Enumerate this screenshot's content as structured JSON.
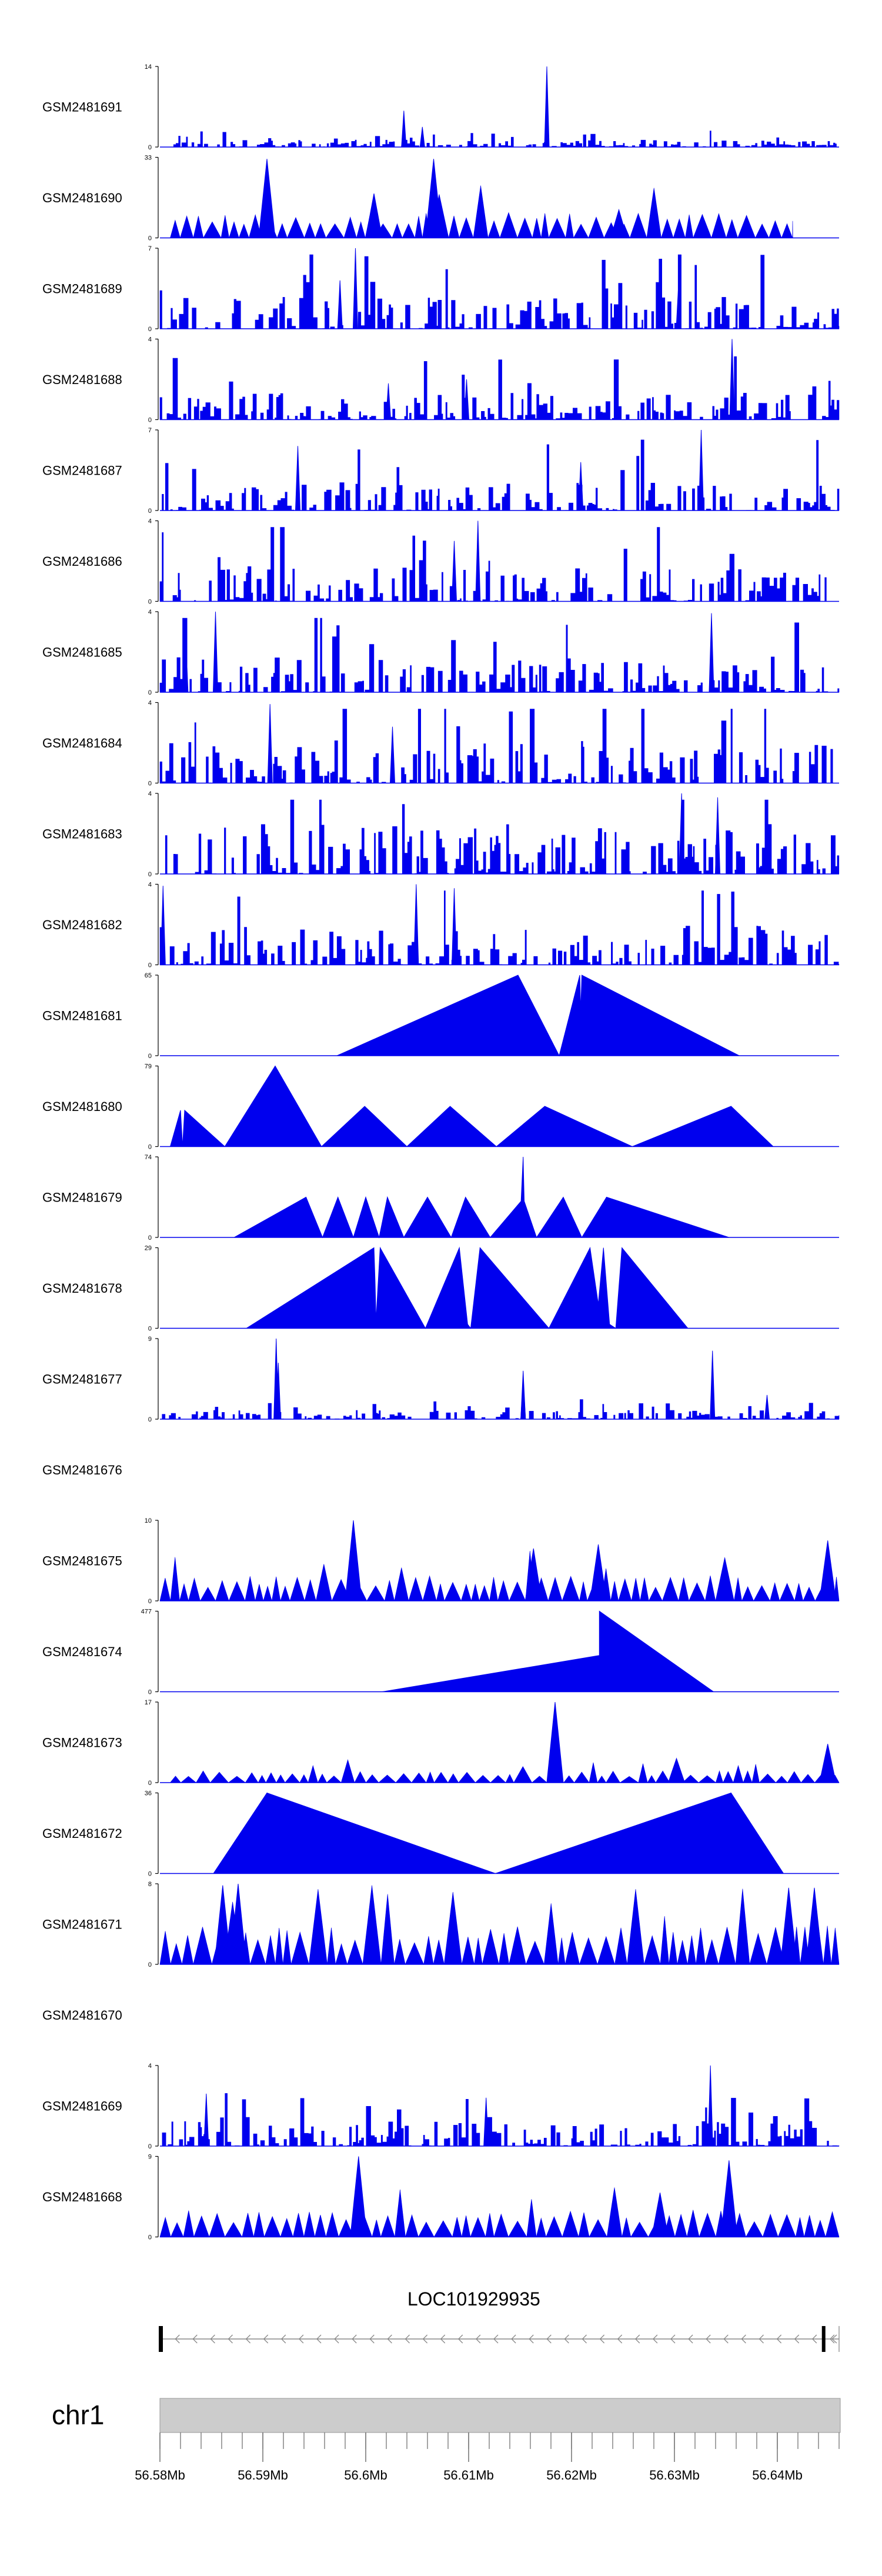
{
  "chart_data": {
    "type": "area",
    "title": "",
    "fill_color": "#0000ee",
    "xlim": [
      56.58,
      56.646
    ],
    "tracks": [
      {
        "name": "GSM2481691",
        "ymax": "14",
        "profile": "noisy",
        "seed": 11,
        "base": 0.04,
        "peaks": [
          [
            56.6037,
            0.45
          ],
          [
            56.6176,
            1.0
          ],
          [
            56.6055,
            0.25
          ]
        ],
        "min_x": 56.58,
        "max_x": 56.646
      },
      {
        "name": "GSM2481690",
        "ymax": "33",
        "profile": "spiky",
        "seed": 23,
        "base": 0.3,
        "peaks": [
          [
            56.5904,
            0.98
          ],
          [
            56.6008,
            0.55
          ],
          [
            56.6066,
            0.98
          ],
          [
            56.6246,
            0.35
          ]
        ],
        "min_x": 56.581,
        "max_x": 56.6415
      },
      {
        "name": "GSM2481689",
        "ymax": "7",
        "profile": "noisy",
        "seed": 37,
        "base": 0.18,
        "peaks": [
          [
            56.599,
            1.0
          ],
          [
            56.5975,
            0.6
          ],
          [
            56.6304,
            0.55
          ]
        ],
        "min_x": 56.58,
        "max_x": 56.646
      },
      {
        "name": "GSM2481688",
        "ymax": "4",
        "profile": "noisy",
        "seed": 41,
        "base": 0.15,
        "peaks": [
          [
            56.6356,
            1.0
          ],
          [
            56.6098,
            0.5
          ],
          [
            56.6022,
            0.45
          ]
        ],
        "min_x": 56.58,
        "max_x": 56.646
      },
      {
        "name": "GSM2481687",
        "ymax": "7",
        "profile": "noisy",
        "seed": 53,
        "base": 0.16,
        "peaks": [
          [
            56.5934,
            0.8
          ],
          [
            56.6326,
            1.0
          ],
          [
            56.6209,
            0.6
          ]
        ],
        "min_x": 56.58,
        "max_x": 56.646
      },
      {
        "name": "GSM2481686",
        "ymax": "4",
        "profile": "noisy",
        "seed": 67,
        "base": 0.2,
        "peaks": [
          [
            56.6109,
            1.0
          ],
          [
            56.6086,
            0.75
          ]
        ],
        "min_x": 56.58,
        "max_x": 56.645
      },
      {
        "name": "GSM2481685",
        "ymax": "4",
        "profile": "noisy",
        "seed": 71,
        "base": 0.2,
        "peaks": [
          [
            56.5854,
            1.0
          ],
          [
            56.6336,
            0.98
          ],
          [
            56.5825,
            0.7
          ]
        ],
        "min_x": 56.58,
        "max_x": 56.646
      },
      {
        "name": "GSM2481684",
        "ymax": "4",
        "profile": "noisy",
        "seed": 83,
        "base": 0.24,
        "peaks": [
          [
            56.5907,
            0.98
          ],
          [
            56.6026,
            0.7
          ]
        ],
        "min_x": 56.58,
        "max_x": 56.646
      },
      {
        "name": "GSM2481683",
        "ymax": "4",
        "profile": "noisy",
        "seed": 97,
        "base": 0.28,
        "peaks": [
          [
            56.6307,
            1.0
          ],
          [
            56.6342,
            0.95
          ]
        ],
        "min_x": 56.58,
        "max_x": 56.646
      },
      {
        "name": "GSM2481682",
        "ymax": "4",
        "profile": "noisy",
        "seed": 101,
        "base": 0.22,
        "peaks": [
          [
            56.5803,
            0.98
          ],
          [
            56.6049,
            1.0
          ],
          [
            56.6086,
            0.95
          ]
        ],
        "min_x": 56.58,
        "max_x": 56.646
      },
      {
        "name": "GSM2481681",
        "ymax": "65",
        "profile": "tri",
        "points": [
          [
            56.5972,
            0
          ],
          [
            56.6148,
            1.0
          ],
          [
            56.6188,
            0
          ],
          [
            56.6208,
            1.0
          ],
          [
            56.6209,
            0.55
          ],
          [
            56.621,
            1.0
          ],
          [
            56.6363,
            0
          ]
        ]
      },
      {
        "name": "GSM2481680",
        "ymax": "79",
        "profile": "tri",
        "points": [
          [
            56.581,
            0
          ],
          [
            56.582,
            0.45
          ],
          [
            56.5822,
            0
          ],
          [
            56.5824,
            0.45
          ],
          [
            56.5863,
            0
          ],
          [
            56.5912,
            1.0
          ],
          [
            56.5957,
            0
          ],
          [
            56.5999,
            0.5
          ],
          [
            56.604,
            0
          ],
          [
            56.6082,
            0.5
          ],
          [
            56.6127,
            0
          ],
          [
            56.6174,
            0.5
          ],
          [
            56.6259,
            0
          ],
          [
            56.6355,
            0.5
          ],
          [
            56.6396,
            0
          ]
        ]
      },
      {
        "name": "GSM2481679",
        "ymax": "74",
        "profile": "tri",
        "points": [
          [
            56.5872,
            0
          ],
          [
            56.5942,
            0.5
          ],
          [
            56.5958,
            0
          ],
          [
            56.5973,
            0.5
          ],
          [
            56.5988,
            0
          ],
          [
            56.6,
            0.5
          ],
          [
            56.6013,
            0
          ],
          [
            56.6021,
            0.5
          ],
          [
            56.6037,
            0
          ],
          [
            56.606,
            0.5
          ],
          [
            56.6083,
            0
          ],
          [
            56.6097,
            0.5
          ],
          [
            56.6121,
            0
          ],
          [
            56.6151,
            0.45
          ],
          [
            56.6151,
            0.45
          ],
          [
            56.6153,
            1.0
          ],
          [
            56.6154,
            0.45
          ],
          [
            56.6166,
            0
          ],
          [
            56.6192,
            0.5
          ],
          [
            56.621,
            0
          ],
          [
            56.6234,
            0.5
          ],
          [
            56.6353,
            0
          ]
        ]
      },
      {
        "name": "GSM2481678",
        "ymax": "29",
        "profile": "tri",
        "points": [
          [
            56.5884,
            0
          ],
          [
            56.6008,
            1.0
          ],
          [
            56.6009,
            0.6
          ],
          [
            56.601,
            0.1
          ],
          [
            56.6014,
            1.0
          ],
          [
            56.6058,
            0
          ],
          [
            56.6091,
            1.0
          ],
          [
            56.6099,
            0.05
          ],
          [
            56.6102,
            0
          ],
          [
            56.6111,
            1.0
          ],
          [
            56.6178,
            0
          ],
          [
            56.6218,
            1.0
          ],
          [
            56.6226,
            0.3
          ],
          [
            56.6231,
            1.0
          ],
          [
            56.6237,
            0.05
          ],
          [
            56.6243,
            0
          ],
          [
            56.6249,
            1.0
          ],
          [
            56.6313,
            0
          ]
        ]
      },
      {
        "name": "GSM2481677",
        "ymax": "9",
        "profile": "noisy",
        "seed": 131,
        "base": 0.05,
        "peaks": [
          [
            56.5913,
            1.0
          ],
          [
            56.5915,
            0.7
          ],
          [
            56.6153,
            0.6
          ],
          [
            56.6153,
            0.5
          ],
          [
            56.6337,
            0.85
          ],
          [
            56.639,
            0.3
          ]
        ],
        "min_x": 56.58,
        "max_x": 56.646
      },
      {
        "name": "GSM2481676",
        "ymax": "",
        "profile": "empty"
      },
      {
        "name": "GSM2481675",
        "ymax": "10",
        "profile": "spiky",
        "seed": 149,
        "base": 0.3,
        "peaks": [
          [
            56.5988,
            1.0
          ],
          [
            56.6163,
            0.65
          ],
          [
            56.6226,
            0.7
          ],
          [
            56.6449,
            0.75
          ]
        ],
        "min_x": 56.58,
        "max_x": 56.646
      },
      {
        "name": "GSM2481674",
        "ymax": "477",
        "profile": "tri",
        "points": [
          [
            56.6016,
            0
          ],
          [
            56.6227,
            0.45
          ],
          [
            56.6227,
            1.0
          ],
          [
            56.6338,
            0
          ]
        ]
      },
      {
        "name": "GSM2481673",
        "ymax": "17",
        "profile": "spiky",
        "seed": 163,
        "base": 0.14,
        "peaks": [
          [
            56.6184,
            1.0
          ],
          [
            56.6184,
            0.6
          ],
          [
            56.6302,
            0.3
          ],
          [
            56.6449,
            0.48
          ]
        ],
        "min_x": 56.581,
        "max_x": 56.646
      },
      {
        "name": "GSM2481672",
        "ymax": "36",
        "profile": "tri",
        "points": [
          [
            56.5852,
            0
          ],
          [
            56.5904,
            1.0
          ],
          [
            56.6126,
            0
          ],
          [
            56.6355,
            1.0
          ],
          [
            56.6406,
            0
          ]
        ]
      },
      {
        "name": "GSM2481671",
        "ymax": "8",
        "profile": "spiky",
        "seed": 181,
        "base": 0.46,
        "peaks": [
          [
            56.5861,
            0.98
          ],
          [
            56.5876,
            1.0
          ],
          [
            56.6411,
            0.95
          ],
          [
            56.6436,
            0.95
          ]
        ],
        "min_x": 56.58,
        "max_x": 56.646
      },
      {
        "name": "GSM2481670",
        "ymax": "",
        "profile": "empty"
      },
      {
        "name": "GSM2481669",
        "ymax": "4",
        "profile": "noisy",
        "seed": 197,
        "base": 0.14,
        "peaks": [
          [
            56.6335,
            1.0
          ],
          [
            56.5845,
            0.65
          ],
          [
            56.6117,
            0.6
          ]
        ],
        "min_x": 56.58,
        "max_x": 56.646
      },
      {
        "name": "GSM2481668",
        "ymax": "9",
        "profile": "spiky",
        "seed": 211,
        "base": 0.32,
        "peaks": [
          [
            56.5993,
            1.0
          ],
          [
            56.6353,
            0.95
          ],
          [
            56.6286,
            0.55
          ]
        ],
        "min_x": 56.58,
        "max_x": 56.646
      }
    ],
    "gene": {
      "label": "LOC101929935",
      "start": 56.58,
      "end": 56.646,
      "strand": "-",
      "arrow_glyph": "<"
    },
    "ideogram": {
      "label": "chr1",
      "ticks": [
        "56.58Mb",
        "56.59Mb",
        "56.6Mb",
        "56.61Mb",
        "56.62Mb",
        "56.63Mb",
        "56.64Mb"
      ],
      "tick_values": [
        56.58,
        56.59,
        56.6,
        56.61,
        56.62,
        56.63,
        56.64
      ],
      "minor_step": 0.002
    }
  }
}
